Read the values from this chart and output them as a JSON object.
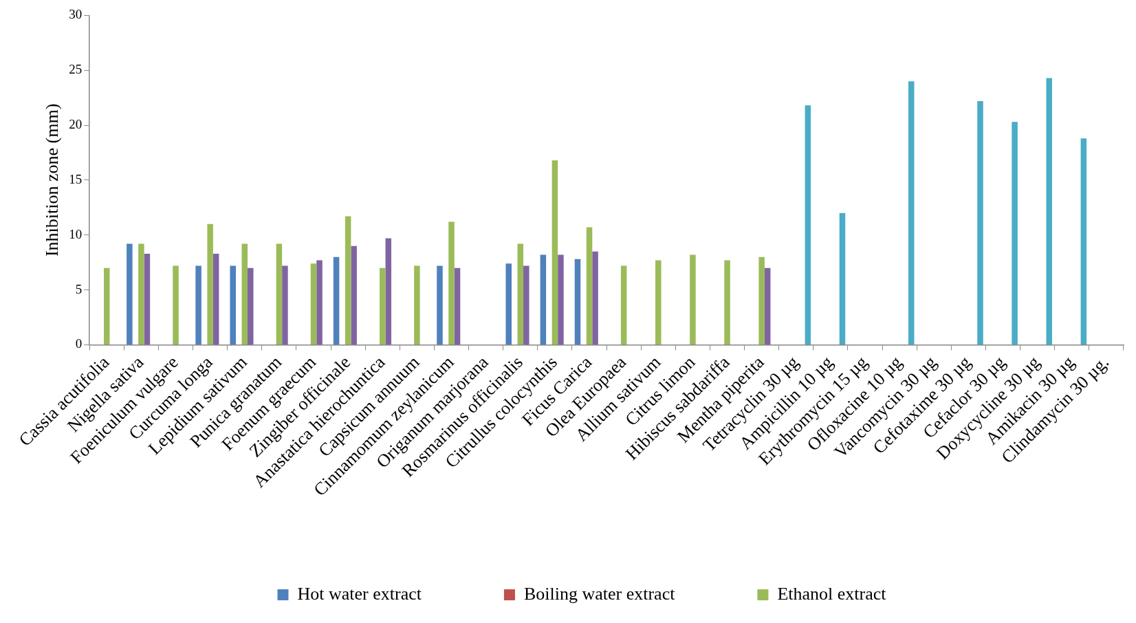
{
  "chart_data": {
    "type": "bar",
    "ylabel": "Inhibition zone (mm)",
    "categories": [
      "Cassia acutifolia",
      "Nigella sativa",
      "Foeniculum vulgare",
      "Curcuma longa",
      "Lepidium sativum",
      "Punica granatum",
      "Foenum graecum",
      "Zingiber officinale",
      "Anastatica hierochuntica",
      "Capsicum annuum",
      "Cinnamomum zeylanicum",
      "Origanum marjorana",
      "Rosmarinus officinalis",
      "Citrullus colocynthis",
      "Ficus Carica",
      "Olea Europaea",
      "Allium sativum",
      "Citrus limon",
      "Hibiscus sabdariffa",
      "Mentha piperita",
      "Tetracyclin 30 µg",
      "Ampicillin 10 µg",
      "Erythromycin 15 µg",
      "Ofloxacine 10 µg",
      "Vancomycin 30 µg",
      "Cefotaxime 30 µg",
      "Cefaclor 30 µg",
      "Doxycycline 30 µg",
      "Amikacin 30 µg",
      "Clindamycin 30 µg."
    ],
    "series": [
      {
        "name": "Hot water extract",
        "color": "#4f81bd",
        "values": [
          null,
          9.2,
          null,
          7.2,
          7.2,
          null,
          null,
          8.0,
          null,
          null,
          7.2,
          null,
          7.4,
          8.2,
          7.8,
          null,
          null,
          null,
          null,
          null,
          null,
          null,
          null,
          null,
          null,
          null,
          null,
          null,
          null,
          null
        ]
      },
      {
        "name": "Boiling water extract",
        "color": "#c0504d",
        "values": [
          null,
          null,
          null,
          null,
          null,
          null,
          null,
          null,
          null,
          null,
          null,
          null,
          null,
          null,
          null,
          null,
          null,
          null,
          null,
          null,
          null,
          null,
          null,
          null,
          null,
          null,
          null,
          null,
          null,
          null
        ]
      },
      {
        "name": "Ethanol extract",
        "color": "#9bbb59",
        "values": [
          7.0,
          9.2,
          7.2,
          11.0,
          9.2,
          9.2,
          7.4,
          11.7,
          7.0,
          7.2,
          11.2,
          null,
          9.2,
          16.8,
          10.7,
          7.2,
          7.7,
          8.2,
          7.7,
          8.0,
          null,
          null,
          null,
          null,
          null,
          null,
          null,
          null,
          null,
          null
        ]
      },
      {
        "color": "#8064a2",
        "values": [
          null,
          8.3,
          null,
          8.3,
          7.0,
          7.2,
          7.7,
          9.0,
          9.7,
          null,
          7.0,
          null,
          7.2,
          8.2,
          8.5,
          null,
          null,
          null,
          null,
          7.0,
          null,
          null,
          null,
          null,
          null,
          null,
          null,
          null,
          null,
          null
        ]
      },
      {
        "color": "#4bacc6",
        "values": [
          null,
          null,
          null,
          null,
          null,
          null,
          null,
          null,
          null,
          null,
          null,
          null,
          null,
          null,
          null,
          null,
          null,
          null,
          null,
          null,
          21.8,
          12.0,
          null,
          24.0,
          null,
          22.2,
          20.3,
          24.3,
          18.8,
          null
        ]
      }
    ],
    "ylim": [
      0,
      30
    ],
    "yticks": [
      0,
      5,
      10,
      15,
      20,
      25,
      30
    ],
    "grid": false,
    "legend": "bottom"
  }
}
